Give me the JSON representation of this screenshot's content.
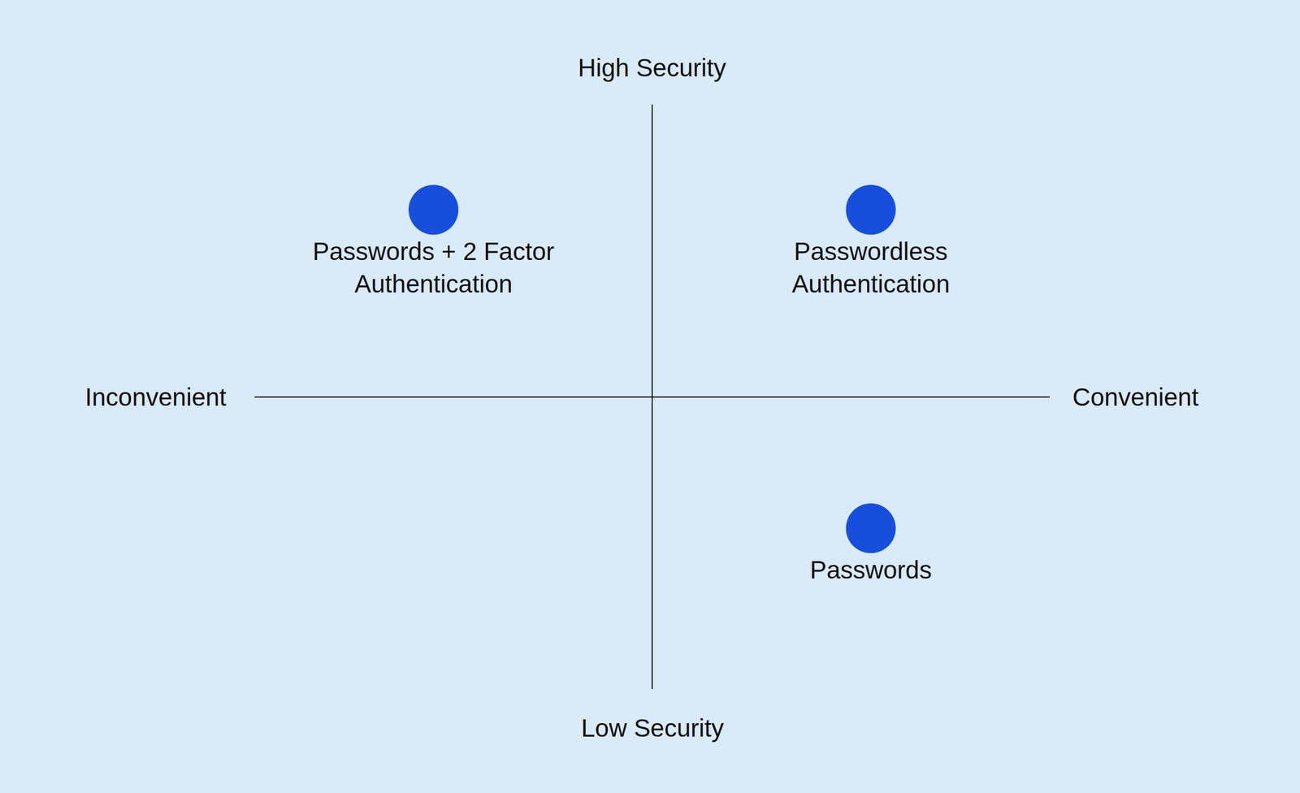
{
  "chart_data": {
    "type": "scatter",
    "x_axis_labels": [
      "Inconvenient",
      "Convenient"
    ],
    "y_axis_labels": [
      "Low Security",
      "High Security"
    ],
    "labels": [
      "Passwords + 2 Factor\nAuthentication",
      "Passwordless\nAuthentication",
      "Passwords"
    ],
    "x": [
      -0.55,
      0.55,
      0.55
    ],
    "values": [
      0.64,
      0.64,
      -0.45
    ],
    "color": "#174fdc",
    "marker": "circle",
    "xlim": [
      -1,
      1
    ],
    "ylim": [
      -1,
      1
    ],
    "grid": false,
    "tick_labels": false
  }
}
